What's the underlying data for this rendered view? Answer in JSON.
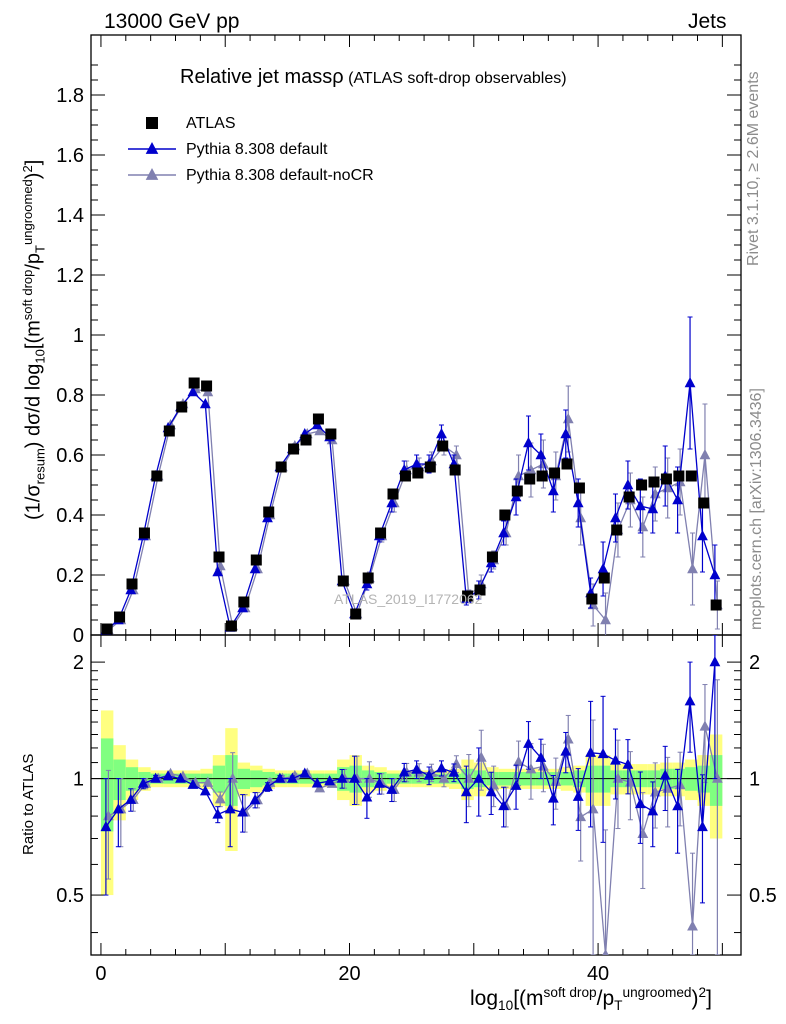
{
  "header": {
    "left": "13000 GeV pp",
    "right": "Jets"
  },
  "title": {
    "main": "Relative jet massρ",
    "sub": "(ATLAS soft-drop observables)"
  },
  "side_labels": {
    "rivet": "Rivet 3.1.10, ≥ 2.6M events",
    "mcplots": "mcplots.cern.ch [arXiv:1306.3436]"
  },
  "watermark": "ATLAS_2019_I1772062",
  "axes": {
    "ylabel_main": "(1/σresum) dσ/d log10[(msoft drop/pTungroomed)2]",
    "ylabel_ratio": "Ratio to ATLAS",
    "xlabel": "log10[(msoft drop/pTungroomed)2]"
  },
  "colors": {
    "atlas": "#000000",
    "default": "#0000cc",
    "nocr": "#8080b0",
    "band_inner": "#80ff80",
    "band_outer": "#ffff80"
  },
  "chart_data": {
    "type": "line",
    "xlim": [
      -0.8,
      51.5
    ],
    "ylim_main": [
      0,
      2.0
    ],
    "ylim_ratio": [
      0.35,
      2.35
    ],
    "ratio_log_scale": true,
    "x_ticks": [
      0,
      20,
      40
    ],
    "y_ticks_main": [
      0,
      0.2,
      0.4,
      0.6,
      0.8,
      1,
      1.2,
      1.4,
      1.6,
      1.8
    ],
    "y_ticks_ratio": [
      0.5,
      1,
      2
    ],
    "legend": "top-left",
    "legend_entries": [
      "ATLAS",
      "Pythia 8.308 default",
      "Pythia 8.308 default-noCR"
    ],
    "x": [
      0.5,
      1.5,
      2.5,
      3.5,
      4.5,
      5.5,
      6.5,
      7.5,
      8.5,
      9.5,
      10.5,
      11.5,
      12.5,
      13.5,
      14.5,
      15.5,
      16.5,
      17.5,
      18.5,
      19.5,
      20.5,
      21.5,
      22.5,
      23.5,
      24.5,
      25.5,
      26.5,
      27.5,
      28.5,
      29.5,
      30.5,
      31.5,
      32.5,
      33.5,
      34.5,
      35.5,
      36.5,
      37.5,
      38.5,
      39.5,
      40.5,
      41.5,
      42.5,
      43.5,
      44.5,
      45.5,
      46.5,
      47.5,
      48.5,
      49.5
    ],
    "series": [
      {
        "name": "ATLAS",
        "marker": "square",
        "values": [
          0.02,
          0.06,
          0.17,
          0.34,
          0.53,
          0.68,
          0.76,
          0.84,
          0.83,
          0.26,
          0.03,
          0.11,
          0.25,
          0.41,
          0.56,
          0.62,
          0.65,
          0.72,
          0.67,
          0.18,
          0.07,
          0.19,
          0.34,
          0.47,
          0.53,
          0.54,
          0.56,
          0.63,
          0.55,
          0.13,
          0.15,
          0.26,
          0.4,
          0.48,
          0.52,
          0.53,
          0.54,
          0.57,
          0.49,
          0.12,
          0.19,
          0.35,
          0.46,
          0.5,
          0.51,
          0.52,
          0.53,
          0.53,
          0.44,
          0.1
        ]
      },
      {
        "name": "Pythia 8.308 default",
        "marker": "triangle",
        "values": [
          0.015,
          0.05,
          0.15,
          0.33,
          0.53,
          0.69,
          0.76,
          0.81,
          0.77,
          0.21,
          0.025,
          0.09,
          0.22,
          0.39,
          0.56,
          0.62,
          0.67,
          0.7,
          0.66,
          0.18,
          0.07,
          0.17,
          0.33,
          0.44,
          0.55,
          0.57,
          0.57,
          0.67,
          0.57,
          0.12,
          0.15,
          0.24,
          0.34,
          0.46,
          0.64,
          0.6,
          0.48,
          0.67,
          0.44,
          0.14,
          0.22,
          0.39,
          0.5,
          0.43,
          0.42,
          0.53,
          0.45,
          0.84,
          0.33,
          0.2
        ],
        "errors": [
          0.005,
          0.01,
          0.01,
          0.01,
          0.01,
          0.01,
          0.01,
          0.01,
          0.01,
          0.01,
          0.005,
          0.01,
          0.01,
          0.01,
          0.01,
          0.01,
          0.01,
          0.01,
          0.01,
          0.01,
          0.01,
          0.02,
          0.02,
          0.03,
          0.03,
          0.03,
          0.03,
          0.03,
          0.03,
          0.02,
          0.03,
          0.03,
          0.04,
          0.06,
          0.09,
          0.07,
          0.07,
          0.08,
          0.08,
          0.05,
          0.09,
          0.08,
          0.08,
          0.09,
          0.08,
          0.1,
          0.11,
          0.22,
          0.12,
          0.1
        ]
      },
      {
        "name": "Pythia 8.308 default-noCR",
        "marker": "triangle",
        "values": [
          0.016,
          0.05,
          0.15,
          0.33,
          0.53,
          0.7,
          0.77,
          0.82,
          0.81,
          0.23,
          0.03,
          0.09,
          0.22,
          0.4,
          0.56,
          0.63,
          0.67,
          0.68,
          0.65,
          0.18,
          0.07,
          0.19,
          0.33,
          0.44,
          0.55,
          0.56,
          0.58,
          0.63,
          0.6,
          0.13,
          0.17,
          0.25,
          0.34,
          0.53,
          0.55,
          0.57,
          0.53,
          0.72,
          0.39,
          0.1,
          0.05,
          0.35,
          0.45,
          0.36,
          0.47,
          0.49,
          0.51,
          0.22,
          0.6,
          0.1
        ],
        "errors": [
          0.005,
          0.01,
          0.01,
          0.01,
          0.01,
          0.01,
          0.01,
          0.01,
          0.01,
          0.01,
          0.005,
          0.01,
          0.01,
          0.01,
          0.01,
          0.01,
          0.01,
          0.01,
          0.01,
          0.01,
          0.01,
          0.02,
          0.02,
          0.03,
          0.03,
          0.03,
          0.03,
          0.03,
          0.03,
          0.02,
          0.03,
          0.03,
          0.04,
          0.07,
          0.09,
          0.08,
          0.08,
          0.11,
          0.09,
          0.07,
          0.09,
          0.09,
          0.09,
          0.1,
          0.09,
          0.1,
          0.11,
          0.12,
          0.17,
          0.08
        ]
      }
    ],
    "ratio_band_inner": [
      0.27,
      0.12,
      0.07,
      0.04,
      0.03,
      0.03,
      0.03,
      0.03,
      0.03,
      0.08,
      0.15,
      0.06,
      0.05,
      0.04,
      0.03,
      0.03,
      0.03,
      0.03,
      0.03,
      0.07,
      0.08,
      0.05,
      0.04,
      0.03,
      0.03,
      0.03,
      0.03,
      0.03,
      0.03,
      0.06,
      0.05,
      0.04,
      0.04,
      0.04,
      0.04,
      0.04,
      0.04,
      0.04,
      0.05,
      0.08,
      0.08,
      0.05,
      0.05,
      0.05,
      0.05,
      0.06,
      0.06,
      0.07,
      0.08,
      0.15
    ],
    "ratio_band_outer": [
      0.5,
      0.22,
      0.12,
      0.07,
      0.05,
      0.05,
      0.05,
      0.05,
      0.06,
      0.15,
      0.35,
      0.1,
      0.08,
      0.06,
      0.05,
      0.05,
      0.05,
      0.05,
      0.05,
      0.12,
      0.15,
      0.08,
      0.07,
      0.05,
      0.05,
      0.05,
      0.05,
      0.05,
      0.06,
      0.12,
      0.1,
      0.07,
      0.06,
      0.06,
      0.06,
      0.06,
      0.06,
      0.07,
      0.08,
      0.15,
      0.15,
      0.09,
      0.09,
      0.09,
      0.09,
      0.1,
      0.1,
      0.12,
      0.15,
      0.3
    ]
  }
}
